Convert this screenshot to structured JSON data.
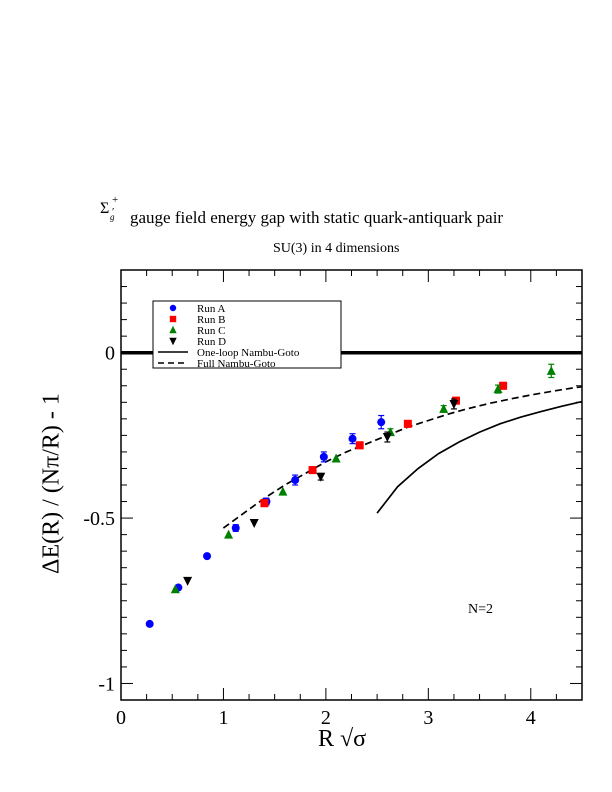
{
  "chart_data": {
    "type": "scatter",
    "title": "gauge field energy gap with static quark-antiquark pair",
    "title_symbol": "Σ",
    "title_symbol_sup": "+′",
    "title_symbol_sub": "g",
    "subtitle": "SU(3) in 4 dimensions",
    "xlabel": "R √σ",
    "ylabel": "ΔE(R) / (Nπ/R) - 1",
    "xlim": [
      0,
      4.5
    ],
    "ylim": [
      -1.05,
      0.25
    ],
    "xticks": [
      "0",
      "1",
      "2",
      "3",
      "4"
    ],
    "xtick_values": [
      0,
      1,
      2,
      3,
      4
    ],
    "yticks": [
      "0",
      "-0.5",
      "-1"
    ],
    "ytick_values": [
      0,
      -0.5,
      -1
    ],
    "annotation": "N=2",
    "legend_position": "top-left",
    "series": [
      {
        "name": "Run A",
        "marker": "circle",
        "color": "#0000ff",
        "x": [
          0.28,
          0.56,
          0.84,
          1.12,
          1.42,
          1.7,
          1.98,
          2.26,
          2.54
        ],
        "y": [
          -0.82,
          -0.71,
          -0.615,
          -0.53,
          -0.45,
          -0.385,
          -0.315,
          -0.26,
          -0.21
        ],
        "err": [
          0,
          0,
          0,
          0.01,
          0.01,
          0.015,
          0.015,
          0.015,
          0.02
        ]
      },
      {
        "name": "Run B",
        "marker": "square",
        "color": "#ff0000",
        "x": [
          1.4,
          1.87,
          2.33,
          2.8,
          3.27,
          3.73
        ],
        "y": [
          -0.455,
          -0.355,
          -0.28,
          -0.215,
          -0.145,
          -0.1
        ],
        "err": [
          0.01,
          0.01,
          0.01,
          0.01,
          0.01,
          0.01
        ]
      },
      {
        "name": "Run C",
        "marker": "triangle-up",
        "color": "#008000",
        "x": [
          0.53,
          1.05,
          1.58,
          2.1,
          2.63,
          3.15,
          3.68,
          4.2
        ],
        "y": [
          -0.715,
          -0.55,
          -0.42,
          -0.32,
          -0.24,
          -0.17,
          -0.11,
          -0.055
        ],
        "err": [
          0,
          0,
          0,
          0,
          0.01,
          0.01,
          0.012,
          0.02
        ]
      },
      {
        "name": "Run D",
        "marker": "triangle-down",
        "color": "#000000",
        "x": [
          0.65,
          1.3,
          1.95,
          2.6,
          3.25
        ],
        "y": [
          -0.69,
          -0.515,
          -0.375,
          -0.255,
          -0.155
        ],
        "err": [
          0,
          0,
          0.01,
          0.015,
          0.015
        ]
      }
    ],
    "curves": [
      {
        "name": "One-loop Nambu-Goto",
        "style": "solid",
        "x": [
          2.5,
          2.7,
          2.9,
          3.1,
          3.3,
          3.5,
          3.7,
          3.9,
          4.1,
          4.3,
          4.5
        ],
        "y": [
          -0.485,
          -0.405,
          -0.35,
          -0.305,
          -0.27,
          -0.24,
          -0.215,
          -0.195,
          -0.178,
          -0.162,
          -0.148
        ]
      },
      {
        "name": "Full Nambu-Goto",
        "style": "dashed",
        "x": [
          1.0,
          1.2,
          1.4,
          1.6,
          1.8,
          2.0,
          2.2,
          2.4,
          2.6,
          2.8,
          3.0,
          3.2,
          3.4,
          3.6,
          3.8,
          4.0,
          4.2,
          4.4,
          4.5
        ],
        "y": [
          -0.53,
          -0.485,
          -0.44,
          -0.4,
          -0.365,
          -0.33,
          -0.3,
          -0.275,
          -0.25,
          -0.225,
          -0.205,
          -0.185,
          -0.168,
          -0.153,
          -0.14,
          -0.128,
          -0.117,
          -0.107,
          -0.103
        ]
      },
      {
        "name": "zero-line",
        "style": "thick",
        "x": [
          0,
          4.5
        ],
        "y": [
          0,
          0
        ]
      }
    ]
  }
}
